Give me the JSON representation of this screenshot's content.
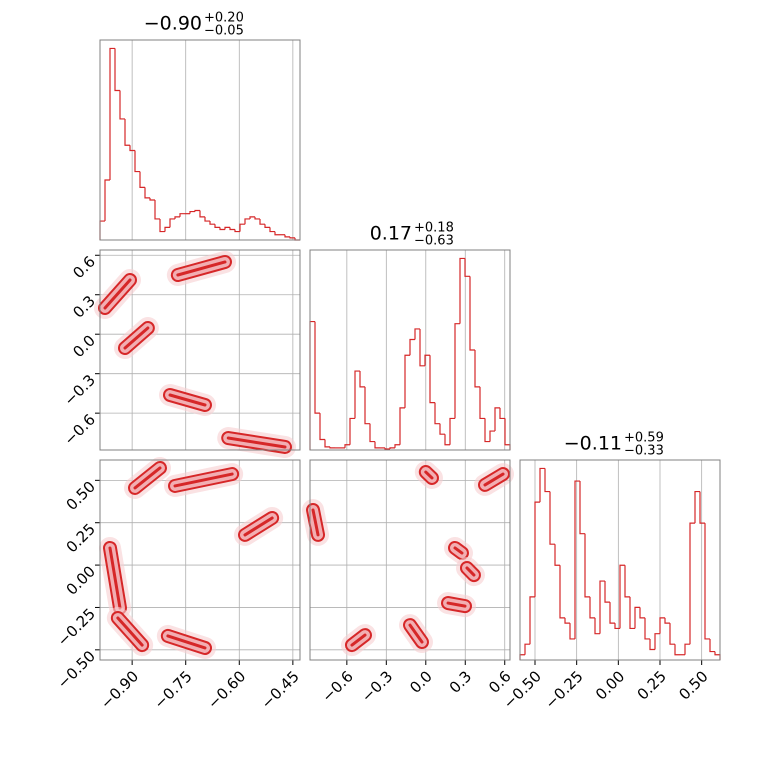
{
  "chart_data": [
    {
      "type": "histogram",
      "title": "−0.90",
      "title_upper": "+0.20",
      "title_lower": "−0.05",
      "color": "#d62728",
      "bins": [
        -0.99,
        -0.976,
        -0.962,
        -0.948,
        -0.934,
        -0.92,
        -0.906,
        -0.892,
        -0.878,
        -0.864,
        -0.85,
        -0.836,
        -0.822,
        -0.808,
        -0.794,
        -0.78,
        -0.766,
        -0.752,
        -0.738,
        -0.724,
        -0.71,
        -0.696,
        -0.682,
        -0.668,
        -0.654,
        -0.64,
        -0.626,
        -0.612,
        -0.598,
        -0.584,
        -0.57,
        -0.556,
        -0.542,
        -0.528,
        -0.514,
        -0.5,
        -0.486,
        -0.472,
        -0.458,
        -0.444,
        -0.43
      ],
      "counts": [
        18,
        57,
        182,
        142,
        115,
        90,
        85,
        65,
        50,
        40,
        38,
        20,
        8,
        12,
        20,
        22,
        25,
        25,
        27,
        28,
        22,
        18,
        15,
        12,
        10,
        12,
        10,
        8,
        15,
        20,
        22,
        20,
        15,
        12,
        8,
        5,
        5,
        3,
        2,
        0
      ],
      "xlim": [
        -0.99,
        -0.43
      ],
      "ylim": [
        0,
        190
      ],
      "gridx": [
        -0.9,
        -0.75,
        -0.6,
        -0.45
      ]
    },
    {
      "type": "contour",
      "color": "#d62728",
      "xlim": [
        -0.99,
        -0.43
      ],
      "ylim": [
        -0.88,
        0.64
      ],
      "gridx": [
        -0.9,
        -0.75,
        -0.6,
        -0.45
      ],
      "yticks": [
        {
          "value": 0.6,
          "label": "0.6"
        },
        {
          "value": 0.3,
          "label": "0.3"
        },
        {
          "value": 0,
          "label": "0.0"
        },
        {
          "value": -0.3,
          "label": "−0.3"
        },
        {
          "value": -0.6,
          "label": "−0.6"
        }
      ],
      "blobs": [
        {
          "x": [
            -0.976,
            -0.906
          ],
          "y": [
            0.199,
            0.412
          ]
        },
        {
          "x": [
            -0.772,
            -0.64
          ],
          "y": [
            0.45,
            0.549
          ]
        },
        {
          "x": [
            -0.92,
            -0.856
          ],
          "y": [
            -0.105,
            0.047
          ]
        },
        {
          "x": [
            -0.794,
            -0.696
          ],
          "y": [
            -0.462,
            -0.538
          ]
        },
        {
          "x": [
            -0.631,
            -0.472
          ],
          "y": [
            -0.789,
            -0.857
          ]
        }
      ]
    },
    {
      "type": "histogram",
      "title": "0.17",
      "title_upper": "+0.18",
      "title_lower": "−0.63",
      "color": "#d62728",
      "bins": [
        -0.88,
        -0.842,
        -0.804,
        -0.766,
        -0.728,
        -0.69,
        -0.652,
        -0.614,
        -0.576,
        -0.538,
        -0.5,
        -0.462,
        -0.424,
        -0.386,
        -0.348,
        -0.31,
        -0.272,
        -0.234,
        -0.196,
        -0.158,
        -0.12,
        -0.082,
        -0.044,
        -0.006,
        0.032,
        0.07,
        0.108,
        0.146,
        0.184,
        0.222,
        0.26,
        0.298,
        0.336,
        0.374,
        0.412,
        0.45,
        0.488,
        0.526,
        0.564,
        0.602,
        0.64
      ],
      "counts": [
        122,
        35,
        10,
        3,
        2,
        2,
        2,
        5,
        30,
        75,
        60,
        25,
        8,
        2,
        2,
        1,
        2,
        5,
        40,
        90,
        105,
        115,
        80,
        90,
        45,
        25,
        15,
        5,
        30,
        120,
        182,
        165,
        95,
        60,
        30,
        8,
        18,
        40,
        30,
        5
      ],
      "xlim": [
        -0.88,
        0.64
      ],
      "ylim": [
        0,
        190
      ],
      "gridx": [
        -0.6,
        -0.3,
        0,
        0.3,
        0.6
      ]
    },
    {
      "type": "contour",
      "color": "#d62728",
      "xlim": [
        -0.99,
        -0.43
      ],
      "ylim": [
        -0.56,
        0.62
      ],
      "xticks": [
        {
          "value": -0.9,
          "label": "−0.90"
        },
        {
          "value": -0.75,
          "label": "−0.75"
        },
        {
          "value": -0.6,
          "label": "−0.60"
        },
        {
          "value": -0.45,
          "label": "−0.45"
        }
      ],
      "yticks": [
        {
          "value": 0.5,
          "label": "0.50"
        },
        0.25,
        {
          "value": 0,
          "label": "0.00"
        },
        {
          "value": -0.25,
          "label": "−0.25"
        },
        {
          "value": -0.5,
          "label": "−0.50"
        }
      ],
      "blobs": [
        {
          "x": [
            -0.892,
            -0.822
          ],
          "y": [
            0.455,
            0.573
          ]
        },
        {
          "x": [
            -0.78,
            -0.62
          ],
          "y": [
            0.467,
            0.537
          ]
        },
        {
          "x": [
            -0.584,
            -0.508
          ],
          "y": [
            0.178,
            0.278
          ]
        },
        {
          "x": [
            -0.962,
            -0.934
          ],
          "y": [
            0.101,
            -0.253
          ]
        },
        {
          "x": [
            -0.94,
            -0.872
          ],
          "y": [
            -0.312,
            -0.472
          ]
        },
        {
          "x": [
            -0.8,
            -0.696
          ],
          "y": [
            -0.418,
            -0.489
          ]
        }
      ]
    },
    {
      "type": "contour",
      "color": "#d62728",
      "xlim": [
        -0.88,
        0.64
      ],
      "ylim": [
        -0.56,
        0.62
      ],
      "xticks": [
        {
          "value": -0.6,
          "label": "−0.6"
        },
        {
          "value": -0.3,
          "label": "−0.3"
        },
        {
          "value": 0,
          "label": "0.0"
        },
        0.3,
        0.6
      ],
      "gridy": [
        0.5,
        0.25,
        0,
        -0.25,
        -0.5
      ],
      "blobs": [
        {
          "x": [
            -0.857,
            -0.819
          ],
          "y": [
            0.325,
            0.178
          ]
        },
        {
          "x": [
            -0.561,
            -0.462
          ],
          "y": [
            -0.472,
            -0.413
          ]
        },
        {
          "x": [
            -0.12,
            -0.029
          ],
          "y": [
            -0.354,
            -0.454
          ]
        },
        {
          "x": [
            0.0,
            0.047
          ],
          "y": [
            0.549,
            0.514
          ]
        },
        {
          "x": [
            0.45,
            0.587
          ],
          "y": [
            0.473,
            0.537
          ]
        },
        {
          "x": [
            0.222,
            0.275
          ],
          "y": [
            0.101,
            0.071
          ]
        },
        {
          "x": [
            0.313,
            0.366
          ],
          "y": [
            -0.017,
            -0.059
          ]
        },
        {
          "x": [
            0.169,
            0.298
          ],
          "y": [
            -0.224,
            -0.242
          ]
        }
      ]
    },
    {
      "type": "histogram",
      "title": "−0.11",
      "title_upper": "+0.59",
      "title_lower": "−0.33",
      "color": "#d62728",
      "bins": [
        -0.59,
        -0.56,
        -0.53,
        -0.5,
        -0.47,
        -0.44,
        -0.41,
        -0.38,
        -0.35,
        -0.32,
        -0.29,
        -0.26,
        -0.23,
        -0.2,
        -0.17,
        -0.14,
        -0.11,
        -0.08,
        -0.05,
        -0.02,
        0.01,
        0.04,
        0.07,
        0.1,
        0.13,
        0.16,
        0.19,
        0.22,
        0.25,
        0.28,
        0.31,
        0.34,
        0.37,
        0.4,
        0.43,
        0.46,
        0.49,
        0.52,
        0.55,
        0.58,
        0.61
      ],
      "counts": [
        5,
        15,
        60,
        150,
        182,
        160,
        110,
        90,
        40,
        35,
        20,
        170,
        120,
        60,
        40,
        25,
        75,
        55,
        35,
        30,
        90,
        60,
        30,
        50,
        40,
        20,
        10,
        25,
        40,
        35,
        15,
        5,
        5,
        15,
        130,
        160,
        130,
        20,
        8,
        5
      ],
      "xlim": [
        -0.59,
        0.61
      ],
      "ylim": [
        0,
        190
      ],
      "xticks": [
        {
          "value": -0.5,
          "label": "−0.50"
        },
        {
          "value": -0.25,
          "label": "−0.25"
        },
        {
          "value": 0,
          "label": "0.00"
        },
        0.25,
        {
          "value": 0.5,
          "label": "0.50"
        }
      ]
    }
  ]
}
